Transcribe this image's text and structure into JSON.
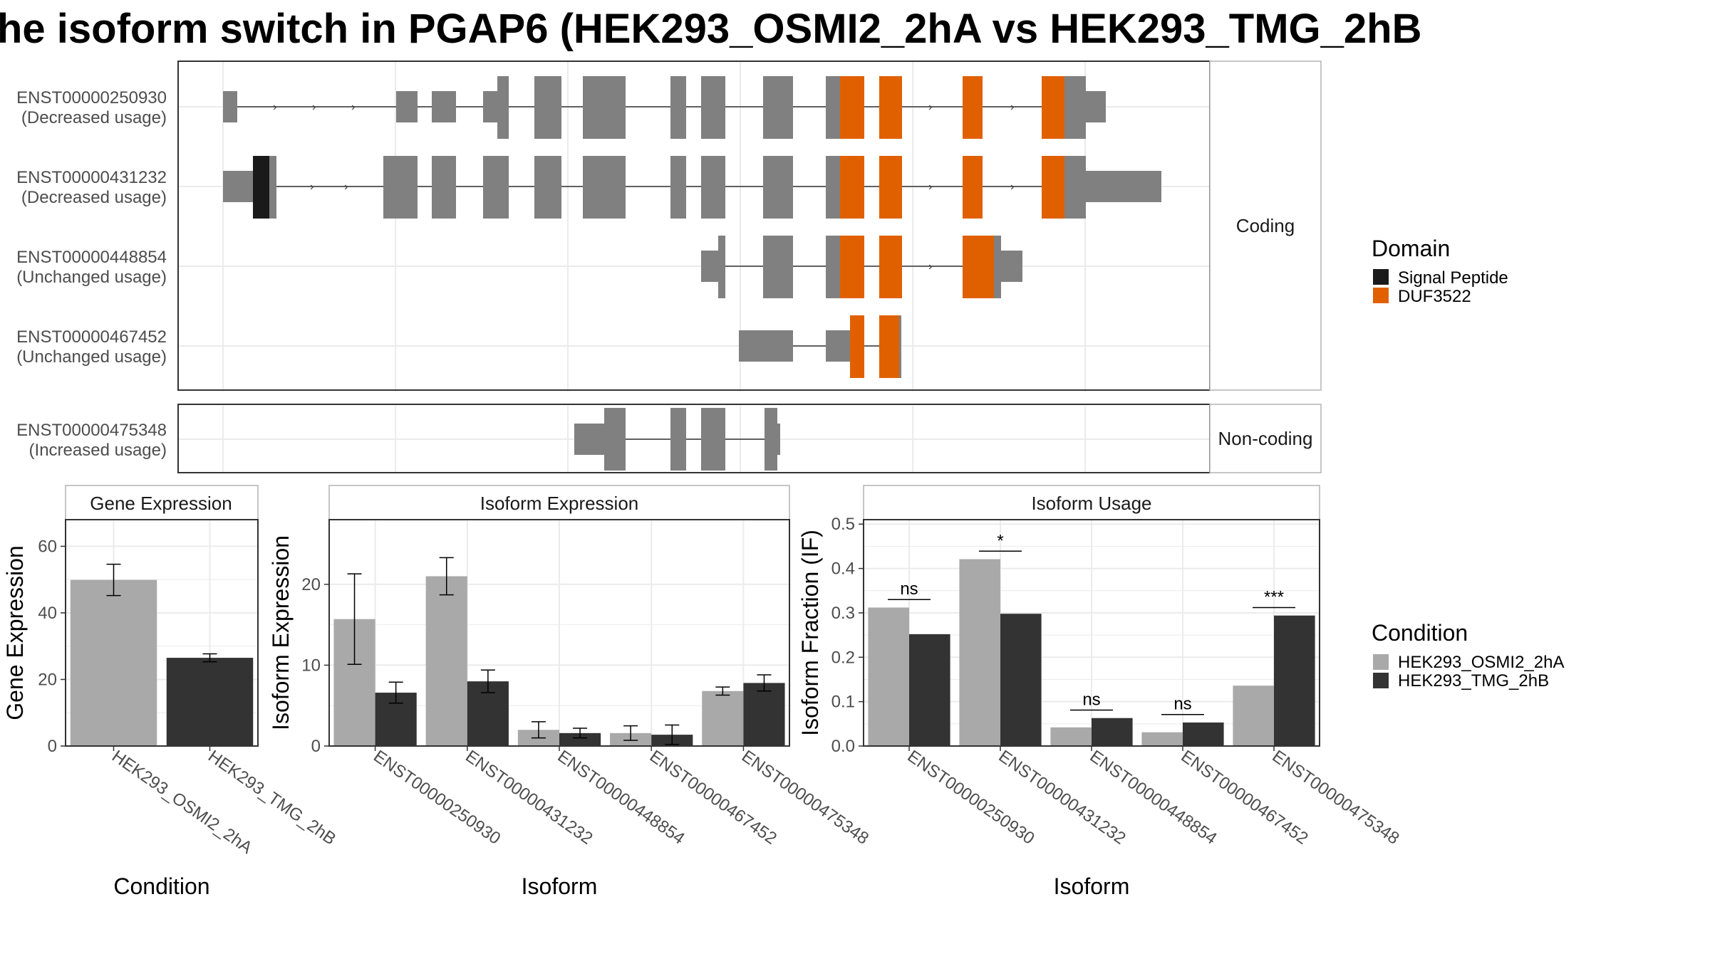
{
  "title": "he isoform switch in PGAP6 (HEK293_OSMI2_2hA vs HEK293_TMG_2hB",
  "colors": {
    "exon": "#808080",
    "signal_peptide": "#1a1a1a",
    "duf3522": "#e06000",
    "cond_a": "#a9a9a9",
    "cond_b": "#333333",
    "grid": "#ebebeb",
    "panel_border": "#333333",
    "strip_border": "#b3b3b3"
  },
  "transcripts": {
    "groups": [
      {
        "label": "Coding",
        "rows": [
          {
            "id": "ENST00000250930",
            "usage": "(Decreased usage)"
          },
          {
            "id": "ENST00000431232",
            "usage": "(Decreased usage)"
          },
          {
            "id": "ENST00000448854",
            "usage": "(Unchanged usage)"
          },
          {
            "id": "ENST00000467452",
            "usage": "(Unchanged usage)"
          }
        ]
      },
      {
        "label": "Non-coding",
        "rows": [
          {
            "id": "ENST00000475348",
            "usage": "(Increased usage)"
          }
        ]
      }
    ],
    "legend": {
      "title": "Domain",
      "items": [
        {
          "label": "Signal Peptide",
          "color": "#1a1a1a"
        },
        {
          "label": "DUF3522",
          "color": "#e06000"
        }
      ]
    }
  },
  "chart_data": [
    {
      "type": "bar",
      "panel": "Gene Expression",
      "categories": [
        "HEK293_OSMI2_2hA",
        "HEK293_TMG_2hB"
      ],
      "values": [
        49.9,
        26.5
      ],
      "errors": [
        4.7,
        1.2
      ],
      "xlabel": "Condition",
      "ylabel": "Gene Expression",
      "ylim": [
        0,
        68
      ],
      "yticks": [
        0,
        20,
        40,
        60
      ]
    },
    {
      "type": "bar",
      "panel": "Isoform Expression",
      "categories": [
        "ENST00000250930",
        "ENST00000431232",
        "ENST00000448854",
        "ENST00000467452",
        "ENST00000475348"
      ],
      "series": [
        {
          "name": "HEK293_OSMI2_2hA",
          "values": [
            15.7,
            21.0,
            2.0,
            1.6,
            6.8
          ],
          "errors": [
            5.6,
            2.3,
            1.0,
            0.9,
            0.5
          ]
        },
        {
          "name": "HEK293_TMG_2hB",
          "values": [
            6.6,
            8.0,
            1.6,
            1.4,
            7.8
          ],
          "errors": [
            1.3,
            1.4,
            0.6,
            1.2,
            1.0
          ]
        }
      ],
      "xlabel": "Isoform",
      "ylabel": "Isoform Expression",
      "ylim": [
        0,
        28
      ],
      "yticks": [
        0,
        10,
        20
      ]
    },
    {
      "type": "bar",
      "panel": "Isoform Usage",
      "categories": [
        "ENST00000250930",
        "ENST00000431232",
        "ENST00000448854",
        "ENST00000467452",
        "ENST00000475348"
      ],
      "series": [
        {
          "name": "HEK293_OSMI2_2hA",
          "values": [
            0.312,
            0.421,
            0.042,
            0.031,
            0.136
          ]
        },
        {
          "name": "HEK293_TMG_2hB",
          "values": [
            0.252,
            0.298,
            0.063,
            0.053,
            0.294
          ]
        }
      ],
      "significance": [
        "ns",
        "*",
        "ns",
        "ns",
        "***"
      ],
      "xlabel": "Isoform",
      "ylabel": "Isoform Fraction (IF)",
      "ylim": [
        0,
        0.51
      ],
      "yticks": [
        0.0,
        0.1,
        0.2,
        0.3,
        0.4,
        0.5
      ],
      "ytick_labels": [
        "0.0",
        "0.1",
        "0.2",
        "0.3",
        "0.4",
        "0.5"
      ]
    }
  ],
  "condition_legend": {
    "title": "Condition",
    "items": [
      {
        "label": "HEK293_OSMI2_2hA",
        "color": "#a9a9a9"
      },
      {
        "label": "HEK293_TMG_2hB",
        "color": "#333333"
      }
    ]
  }
}
